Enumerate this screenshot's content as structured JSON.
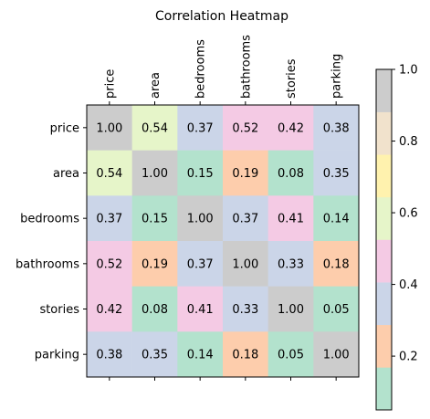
{
  "chart_data": {
    "type": "heatmap",
    "title": "Correlation Heatmap",
    "columns": [
      "price",
      "area",
      "bedrooms",
      "bathrooms",
      "stories",
      "parking"
    ],
    "rows": [
      "price",
      "area",
      "bedrooms",
      "bathrooms",
      "stories",
      "parking"
    ],
    "values": [
      [
        1.0,
        0.54,
        0.37,
        0.52,
        0.42,
        0.38
      ],
      [
        0.54,
        1.0,
        0.15,
        0.19,
        0.08,
        0.35
      ],
      [
        0.37,
        0.15,
        1.0,
        0.37,
        0.41,
        0.14
      ],
      [
        0.52,
        0.19,
        0.37,
        1.0,
        0.33,
        0.18
      ],
      [
        0.42,
        0.08,
        0.41,
        0.33,
        1.0,
        0.05
      ],
      [
        0.38,
        0.35,
        0.14,
        0.18,
        0.05,
        1.0
      ]
    ],
    "value_labels": [
      [
        "1.00",
        "0.54",
        "0.37",
        "0.52",
        "0.42",
        "0.38"
      ],
      [
        "0.54",
        "1.00",
        "0.15",
        "0.19",
        "0.08",
        "0.35"
      ],
      [
        "0.37",
        "0.15",
        "1.00",
        "0.37",
        "0.41",
        "0.14"
      ],
      [
        "0.52",
        "0.19",
        "0.37",
        "1.00",
        "0.33",
        "0.18"
      ],
      [
        "0.42",
        "0.08",
        "0.41",
        "0.33",
        "1.00",
        "0.05"
      ],
      [
        "0.38",
        "0.35",
        "0.14",
        "0.18",
        "0.05",
        "1.00"
      ]
    ],
    "colorbar": {
      "range": [
        0.05,
        1.0
      ],
      "ticks": [
        0.2,
        0.4,
        0.6,
        0.8,
        1.0
      ],
      "tick_labels": [
        "0.2",
        "0.4",
        "0.6",
        "0.8",
        "1.0"
      ],
      "colormap": "Pastel2",
      "colors": [
        "#b3e2cd",
        "#fdcdac",
        "#cbd5e8",
        "#f4cae4",
        "#e6f5c9",
        "#fff2ae",
        "#f1e2cc",
        "#cccccc"
      ]
    },
    "x_tick_position": "top",
    "grid": false
  }
}
